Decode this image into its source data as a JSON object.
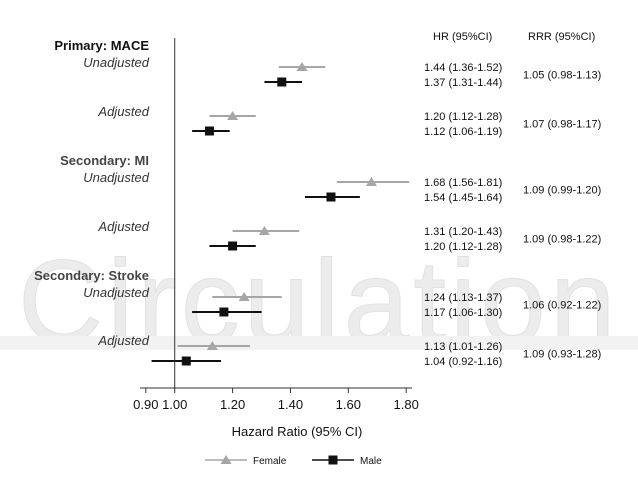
{
  "watermark": "Circulation",
  "chart_data": {
    "type": "forest",
    "x_axis": {
      "label": "Hazard Ratio (95% CI)",
      "range": [
        0.88,
        1.82
      ],
      "ticks": [
        "0.90",
        "1.00",
        "1.20",
        "1.40",
        "1.60",
        "1.80"
      ],
      "reference_line": 1.0
    },
    "column_headers": {
      "hr": "HR (95%CI)",
      "rrr": "RRR (95%CI)"
    },
    "series": [
      {
        "name": "Female",
        "marker": "triangle",
        "color": "#a6a6a6"
      },
      {
        "name": "Male",
        "marker": "square",
        "color": "#111111"
      }
    ],
    "groups": [
      {
        "heading": "Primary: MACE",
        "subgroups": [
          {
            "label": "Unadjusted",
            "rrr": "1.05 (0.98-1.13)",
            "estimates": [
              {
                "series": "Female",
                "hr": 1.44,
                "low": 1.36,
                "high": 1.52,
                "text": "1.44 (1.36-1.52)"
              },
              {
                "series": "Male",
                "hr": 1.37,
                "low": 1.31,
                "high": 1.44,
                "text": "1.37 (1.31-1.44)"
              }
            ]
          },
          {
            "label": "Adjusted",
            "rrr": "1.07 (0.98-1.17)",
            "estimates": [
              {
                "series": "Female",
                "hr": 1.2,
                "low": 1.12,
                "high": 1.28,
                "text": "1.20 (1.12-1.28)"
              },
              {
                "series": "Male",
                "hr": 1.12,
                "low": 1.06,
                "high": 1.19,
                "text": "1.12 (1.06-1.19)"
              }
            ]
          }
        ]
      },
      {
        "heading": "Secondary: MI",
        "subgroups": [
          {
            "label": "Unadjusted",
            "rrr": "1.09 (0.99-1.20)",
            "estimates": [
              {
                "series": "Female",
                "hr": 1.68,
                "low": 1.56,
                "high": 1.81,
                "text": "1.68 (1.56-1.81)"
              },
              {
                "series": "Male",
                "hr": 1.54,
                "low": 1.45,
                "high": 1.64,
                "text": "1.54 (1.45-1.64)"
              }
            ]
          },
          {
            "label": "Adjusted",
            "rrr": "1.09 (0.98-1.22)",
            "estimates": [
              {
                "series": "Female",
                "hr": 1.31,
                "low": 1.2,
                "high": 1.43,
                "text": "1.31 (1.20-1.43)"
              },
              {
                "series": "Male",
                "hr": 1.2,
                "low": 1.12,
                "high": 1.28,
                "text": "1.20 (1.12-1.28)"
              }
            ]
          }
        ]
      },
      {
        "heading": "Secondary: Stroke",
        "subgroups": [
          {
            "label": "Unadjusted",
            "rrr": "1.06 (0.92-1.22)",
            "estimates": [
              {
                "series": "Female",
                "hr": 1.24,
                "low": 1.13,
                "high": 1.37,
                "text": "1.24 (1.13-1.37)"
              },
              {
                "series": "Male",
                "hr": 1.17,
                "low": 1.06,
                "high": 1.3,
                "text": "1.17 (1.06-1.30)"
              }
            ]
          },
          {
            "label": "Adjusted",
            "rrr": "1.09 (0.93-1.28)",
            "estimates": [
              {
                "series": "Female",
                "hr": 1.13,
                "low": 1.01,
                "high": 1.26,
                "text": "1.13 (1.01-1.26)"
              },
              {
                "series": "Male",
                "hr": 1.04,
                "low": 0.92,
                "high": 1.16,
                "text": "1.04 (0.92-1.16)"
              }
            ]
          }
        ]
      }
    ]
  }
}
